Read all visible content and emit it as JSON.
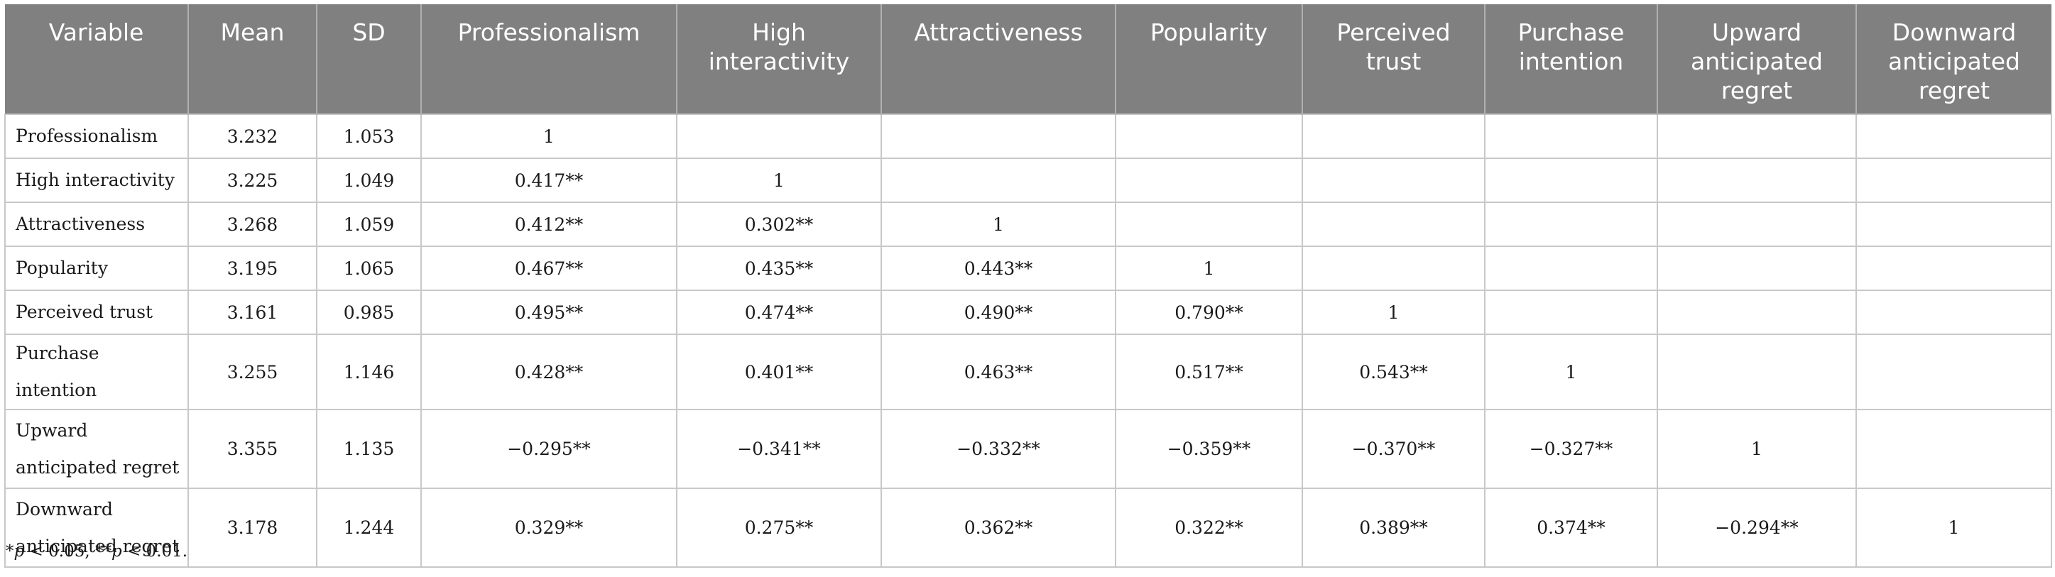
{
  "table": {
    "headers": {
      "variable": "Variable",
      "mean": "Mean",
      "sd": "SD",
      "c1": "Professionalism",
      "c2": "High interactivity",
      "c3": "Attractiveness",
      "c4": "Popularity",
      "c5": "Perceived trust",
      "c6": "Purchase intention",
      "c7": "Upward anticipated regret",
      "c8": "Downward anticipated regret"
    },
    "rows": [
      {
        "name": "Professionalism",
        "mean": "3.232",
        "sd": "1.053",
        "c": [
          "1",
          "",
          "",
          "",
          "",
          "",
          "",
          ""
        ]
      },
      {
        "name": "High interactivity",
        "mean": "3.225",
        "sd": "1.049",
        "c": [
          "0.417**",
          "1",
          "",
          "",
          "",
          "",
          "",
          ""
        ]
      },
      {
        "name": "Attractiveness",
        "mean": "3.268",
        "sd": "1.059",
        "c": [
          "0.412**",
          "0.302**",
          "1",
          "",
          "",
          "",
          "",
          ""
        ]
      },
      {
        "name": "Popularity",
        "mean": "3.195",
        "sd": "1.065",
        "c": [
          "0.467**",
          "0.435**",
          "0.443**",
          "1",
          "",
          "",
          "",
          ""
        ]
      },
      {
        "name": "Perceived trust",
        "mean": "3.161",
        "sd": "0.985",
        "c": [
          "0.495**",
          "0.474**",
          "0.490**",
          "0.790**",
          "1",
          "",
          "",
          ""
        ]
      },
      {
        "name": "Purchase intention",
        "mean": "3.255",
        "sd": "1.146",
        "c": [
          "0.428**",
          "0.401**",
          "0.463**",
          "0.517**",
          "0.543**",
          "1",
          "",
          ""
        ]
      },
      {
        "name": "Upward anticipated regret",
        "mean": "3.355",
        "sd": "1.135",
        "c": [
          "−0.295**",
          "−0.341**",
          "−0.332**",
          "−0.359**",
          "−0.370**",
          "−0.327**",
          "1",
          ""
        ]
      },
      {
        "name": "Downward anticipated regret",
        "mean": "3.178",
        "sd": "1.244",
        "c": [
          "0.329**",
          "0.275**",
          "0.362**",
          "0.322**",
          "0.389**",
          "0.374**",
          "−0.294**",
          "1"
        ]
      }
    ]
  },
  "footnote": {
    "star1": "*",
    "p1": "p",
    "t1": " < 0.05, **",
    "p2": "p",
    "t2": " < 0.01."
  }
}
